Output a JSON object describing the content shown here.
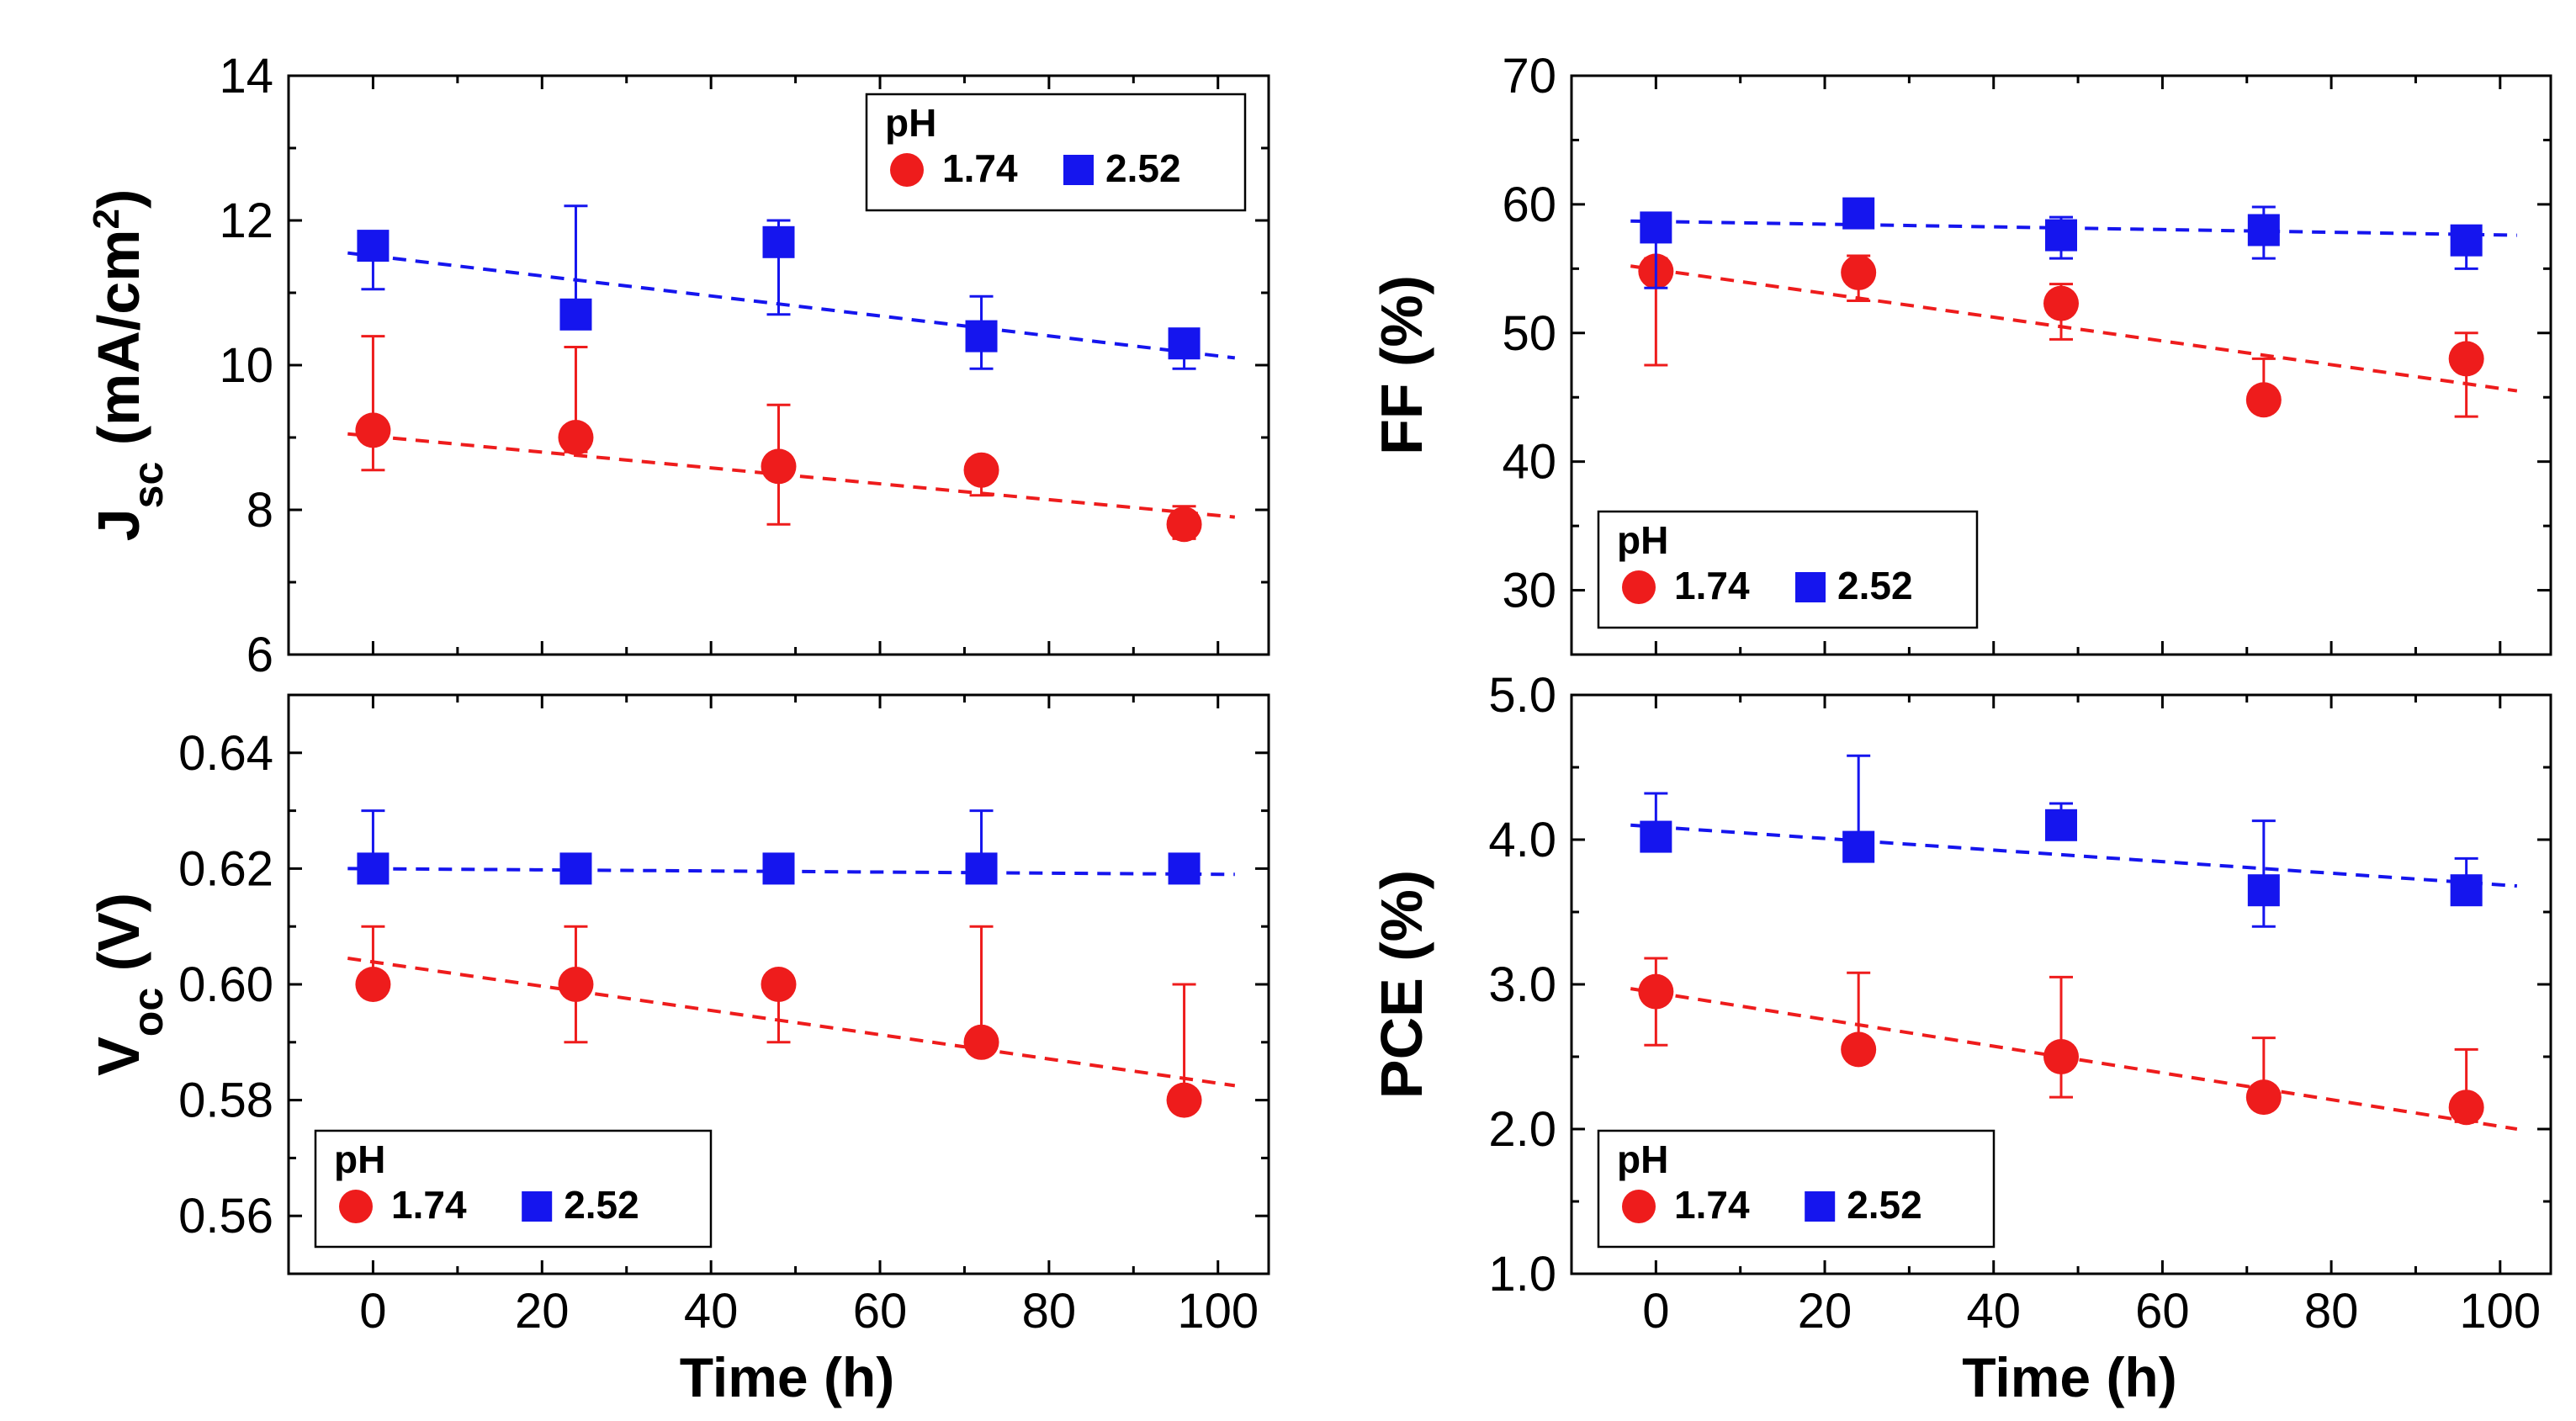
{
  "colors": {
    "series_a": "#ee1c1c",
    "series_b": "#1515ee",
    "axis": "#000000"
  },
  "x_axis": {
    "label": "Time (h)",
    "ticks": [
      0,
      20,
      40,
      60,
      80,
      100
    ],
    "tick_labels": [
      "0",
      "20",
      "40",
      "60",
      "80",
      "100"
    ],
    "xlim": [
      -10,
      106
    ]
  },
  "chart_data": [
    {
      "id": "jsc",
      "type": "scatter",
      "ylabel": {
        "main": "J",
        "sub": "sc",
        "rest": " (mA/cm",
        "sup": "2",
        "close": ")"
      },
      "ylim": [
        6,
        14
      ],
      "yticks": [
        6,
        8,
        10,
        12,
        14
      ],
      "ytick_labels": [
        "6",
        "8",
        "10",
        "12",
        "14"
      ],
      "legend": {
        "title": "pH",
        "labels": [
          "1.74",
          "2.52"
        ],
        "position": "top-right"
      },
      "series": [
        {
          "name": "1.74",
          "marker": "circle",
          "color": "#ee1c1c",
          "x": [
            0,
            24,
            48,
            72,
            96
          ],
          "y": [
            9.1,
            9.0,
            8.6,
            8.55,
            7.8
          ],
          "err_low": [
            8.55,
            8.8,
            7.8,
            8.2,
            7.6
          ],
          "err_high": [
            10.4,
            10.25,
            9.45,
            8.7,
            8.05
          ],
          "fit": [
            9.05,
            7.9
          ]
        },
        {
          "name": "2.52",
          "marker": "square",
          "color": "#1515ee",
          "x": [
            0,
            24,
            48,
            72,
            96
          ],
          "y": [
            11.65,
            10.7,
            11.7,
            10.4,
            10.3
          ],
          "err_low": [
            11.05,
            10.6,
            10.7,
            9.95,
            9.95
          ],
          "err_high": [
            11.75,
            12.2,
            12.0,
            10.95,
            10.45
          ],
          "fit": [
            11.55,
            10.1
          ]
        }
      ]
    },
    {
      "id": "ff",
      "type": "scatter",
      "ylabel": {
        "main": "FF (%)"
      },
      "ylim": [
        25,
        70
      ],
      "yticks": [
        30,
        40,
        50,
        60,
        70
      ],
      "ytick_labels": [
        "30",
        "40",
        "50",
        "60",
        "70"
      ],
      "legend": {
        "title": "pH",
        "labels": [
          "1.74",
          "2.52"
        ],
        "position": "bottom-left"
      },
      "series": [
        {
          "name": "1.74",
          "marker": "circle",
          "color": "#ee1c1c",
          "x": [
            0,
            24,
            48,
            72,
            96
          ],
          "y": [
            54.8,
            54.7,
            52.3,
            44.8,
            48.0
          ],
          "err_low": [
            47.5,
            52.5,
            49.5,
            44.0,
            43.5
          ],
          "err_high": [
            55.8,
            56.0,
            53.8,
            48.0,
            50.0
          ],
          "fit": [
            55.2,
            45.5
          ]
        },
        {
          "name": "2.52",
          "marker": "square",
          "color": "#1515ee",
          "x": [
            0,
            24,
            48,
            72,
            96
          ],
          "y": [
            58.2,
            59.3,
            57.6,
            58.0,
            57.2
          ],
          "err_low": [
            53.5,
            58.6,
            55.8,
            55.8,
            55.0
          ],
          "err_high": [
            58.6,
            59.8,
            59.0,
            59.8,
            58.2
          ],
          "fit": [
            58.7,
            57.6
          ]
        }
      ]
    },
    {
      "id": "voc",
      "type": "scatter",
      "ylabel": {
        "main": "V",
        "sub": "oc",
        "rest": " (V)"
      },
      "ylim": [
        0.55,
        0.65
      ],
      "yticks": [
        0.56,
        0.58,
        0.6,
        0.62,
        0.64
      ],
      "ytick_labels": [
        "0.56",
        "0.58",
        "0.60",
        "0.62",
        "0.64"
      ],
      "legend": {
        "title": "pH",
        "labels": [
          "1.74",
          "2.52"
        ],
        "position": "bottom-left"
      },
      "series": [
        {
          "name": "1.74",
          "marker": "circle",
          "color": "#ee1c1c",
          "x": [
            0,
            24,
            48,
            72,
            96
          ],
          "y": [
            0.6,
            0.6,
            0.6,
            0.59,
            0.58
          ],
          "err_low": [
            0.6,
            0.59,
            0.59,
            0.59,
            0.58
          ],
          "err_high": [
            0.61,
            0.61,
            0.6,
            0.61,
            0.6
          ],
          "fit": [
            0.6045,
            0.5825
          ]
        },
        {
          "name": "2.52",
          "marker": "square",
          "color": "#1515ee",
          "x": [
            0,
            24,
            48,
            72,
            96
          ],
          "y": [
            0.62,
            0.62,
            0.62,
            0.62,
            0.62
          ],
          "err_low": [
            0.62,
            0.62,
            0.62,
            0.62,
            0.62
          ],
          "err_high": [
            0.63,
            0.62,
            0.62,
            0.63,
            0.62
          ],
          "fit": [
            0.62,
            0.619
          ]
        }
      ]
    },
    {
      "id": "pce",
      "type": "scatter",
      "ylabel": {
        "main": "PCE (%)"
      },
      "ylim": [
        1.0,
        5.0
      ],
      "yticks": [
        1.0,
        2.0,
        3.0,
        4.0,
        5.0
      ],
      "ytick_labels": [
        "1.0",
        "2.0",
        "3.0",
        "4.0",
        "5.0"
      ],
      "legend": {
        "title": "pH",
        "labels": [
          "1.74",
          "2.52"
        ],
        "position": "bottom-left"
      },
      "series": [
        {
          "name": "1.74",
          "marker": "circle",
          "color": "#ee1c1c",
          "x": [
            0,
            24,
            48,
            72,
            96
          ],
          "y": [
            2.95,
            2.55,
            2.5,
            2.22,
            2.15
          ],
          "err_low": [
            2.58,
            2.55,
            2.22,
            2.22,
            2.05
          ],
          "err_high": [
            3.18,
            3.08,
            3.05,
            2.63,
            2.55
          ],
          "fit": [
            2.97,
            2.0
          ]
        },
        {
          "name": "2.52",
          "marker": "square",
          "color": "#1515ee",
          "x": [
            0,
            24,
            48,
            72,
            96
          ],
          "y": [
            4.02,
            3.95,
            4.1,
            3.65,
            3.65
          ],
          "err_low": [
            3.95,
            3.95,
            4.02,
            3.4,
            3.65
          ],
          "err_high": [
            4.32,
            4.58,
            4.25,
            4.13,
            3.87
          ],
          "fit": [
            4.1,
            3.68
          ]
        }
      ]
    }
  ]
}
